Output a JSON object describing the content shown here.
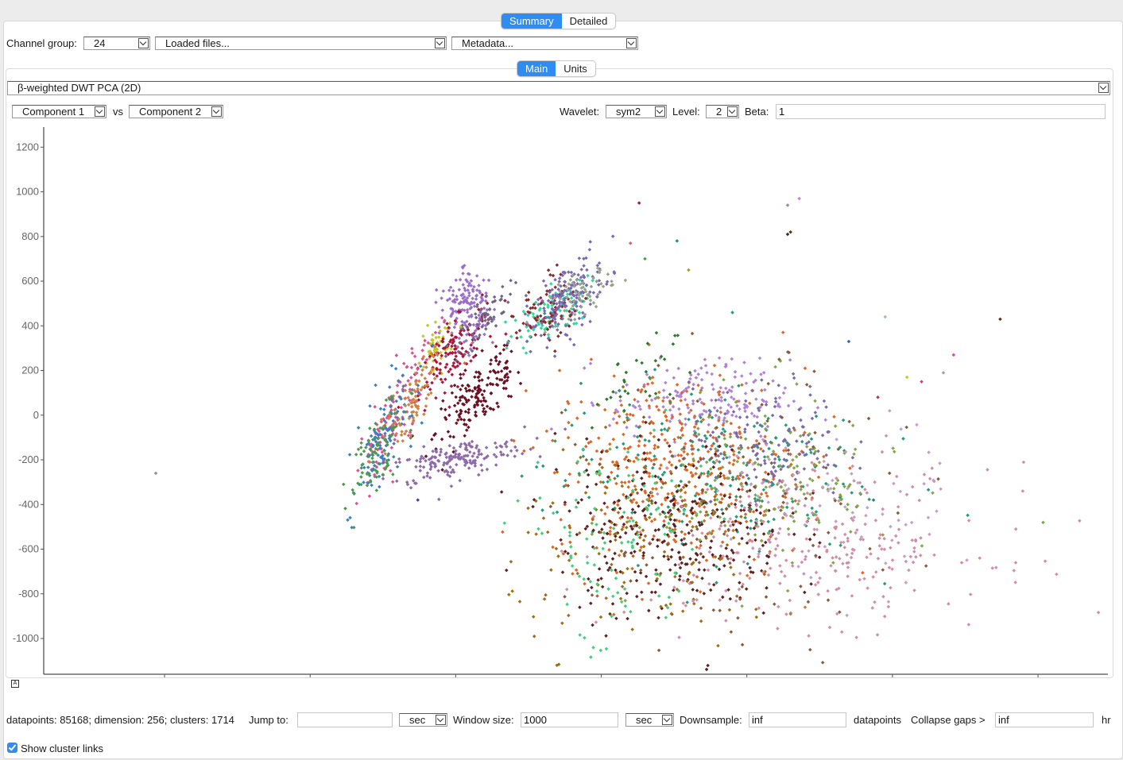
{
  "tabs_top": [
    {
      "label": "Summary",
      "active": true
    },
    {
      "label": "Detailed",
      "active": false
    }
  ],
  "toolbar": {
    "channel_group_label": "Channel group:",
    "channel_group_value": "24",
    "files_value": "Loaded files...",
    "metadata_value": "Metadata..."
  },
  "tabs_inner": [
    {
      "label": "Main",
      "active": true
    },
    {
      "label": "Units",
      "active": false
    }
  ],
  "method_value": "β-weighted DWT PCA (2D)",
  "axes_controls": {
    "x_component": "Component 1",
    "vs_label": "vs",
    "y_component": "Component 2",
    "wavelet_label": "Wavelet:",
    "wavelet_value": "sym2",
    "level_label": "Level:",
    "level_value": "2",
    "beta_label": "Beta:",
    "beta_value": "1"
  },
  "chart_data": {
    "type": "scatter",
    "x_ticks": [
      -2000,
      -1000,
      0,
      1000,
      2000,
      3000,
      4000
    ],
    "y_ticks": [
      1200,
      1000,
      800,
      600,
      400,
      200,
      0,
      -200,
      -400,
      -600,
      -800,
      -1000
    ],
    "xlim": [
      -2830,
      4480
    ],
    "ylim": [
      -1160,
      1290
    ],
    "grid": false,
    "clusters": [
      {
        "name": "",
        "color": "#9b6fc9",
        "cx": 80,
        "cy": 480,
        "sx": 40,
        "sy": 40,
        "angle": 55,
        "n": 160
      },
      {
        "name": "",
        "color": "#c6c820",
        "cx": -140,
        "cy": 300,
        "sx": 30,
        "sy": 20,
        "angle": 55,
        "n": 50
      },
      {
        "name": "",
        "color": "#b0123a",
        "cx": -20,
        "cy": 280,
        "sx": 70,
        "sy": 25,
        "angle": 35,
        "n": 120
      },
      {
        "name": "",
        "color": "#6b1022",
        "cx": 170,
        "cy": 100,
        "sx": 80,
        "sy": 30,
        "angle": 30,
        "n": 170
      },
      {
        "name": "",
        "color": "#8e6aa8",
        "cx": 0,
        "cy": -200,
        "sx": 110,
        "sy": 18,
        "angle": 8,
        "n": 170
      },
      {
        "name": "",
        "color": "#6f6584",
        "cx": 200,
        "cy": 440,
        "sx": 50,
        "sy": 18,
        "angle": 35,
        "n": 60
      },
      {
        "name": "",
        "color": "#2fd99a",
        "cx": 620,
        "cy": 430,
        "sx": 70,
        "sy": 25,
        "angle": 25,
        "n": 90
      },
      {
        "name": "",
        "color": "#8a2a2a",
        "cx": 640,
        "cy": 460,
        "sx": 50,
        "sy": 35,
        "angle": 30,
        "n": 80
      },
      {
        "name": "",
        "color": "#7b68b5",
        "cx": 770,
        "cy": 530,
        "sx": 70,
        "sy": 30,
        "angle": 30,
        "n": 160
      },
      {
        "name": "",
        "color": "#95a58a",
        "cx": 880,
        "cy": 550,
        "sx": 50,
        "sy": 20,
        "angle": 20,
        "n": 60
      },
      {
        "name": "",
        "color": "#e05090",
        "cx": -420,
        "cy": 0,
        "sx": 90,
        "sy": 25,
        "angle": 55,
        "n": 120
      },
      {
        "name": "",
        "color": "#3a7fc0",
        "cx": -480,
        "cy": -100,
        "sx": 80,
        "sy": 30,
        "angle": 55,
        "n": 110
      },
      {
        "name": "",
        "color": "#d08040",
        "cx": -300,
        "cy": 60,
        "sx": 60,
        "sy": 20,
        "angle": 50,
        "n": 80
      },
      {
        "name": "",
        "color": "#4a9a4a",
        "cx": -560,
        "cy": -180,
        "sx": 60,
        "sy": 30,
        "angle": 50,
        "n": 80
      },
      {
        "name": "",
        "color": "#b280d8",
        "cx": 1680,
        "cy": 70,
        "sx": 140,
        "sy": 40,
        "angle": 0,
        "n": 170
      },
      {
        "name": "",
        "color": "#e46422",
        "cx": 1550,
        "cy": -230,
        "sx": 200,
        "sy": 100,
        "angle": 0,
        "n": 420
      },
      {
        "name": "",
        "color": "#1f9c7a",
        "cx": 1700,
        "cy": -250,
        "sx": 250,
        "sy": 90,
        "angle": 0,
        "n": 200
      },
      {
        "name": "",
        "color": "#7a6aa8",
        "cx": 2150,
        "cy": -130,
        "sx": 120,
        "sy": 60,
        "angle": 0,
        "n": 150
      },
      {
        "name": "",
        "color": "#5e2020",
        "cx": 1480,
        "cy": -520,
        "sx": 180,
        "sy": 90,
        "angle": 0,
        "n": 300
      },
      {
        "name": "",
        "color": "#a46c12",
        "cx": 1350,
        "cy": -600,
        "sx": 220,
        "sy": 100,
        "angle": 0,
        "n": 160
      },
      {
        "name": "",
        "color": "#d48ca8",
        "cx": 2450,
        "cy": -580,
        "sx": 280,
        "sy": 80,
        "angle": 0,
        "n": 260
      },
      {
        "name": "",
        "color": "#3ed17a",
        "cx": 1100,
        "cy": -600,
        "sx": 150,
        "sy": 120,
        "angle": 0,
        "n": 100
      },
      {
        "name": "",
        "color": "#7ea84a",
        "cx": 2150,
        "cy": -300,
        "sx": 200,
        "sy": 90,
        "angle": 0,
        "n": 150
      },
      {
        "name": "",
        "color": "#c4a0c4",
        "cx": 2500,
        "cy": -420,
        "sx": 200,
        "sy": 90,
        "angle": 0,
        "n": 80
      },
      {
        "name": "",
        "color": "#2a7a2a",
        "cx": 1300,
        "cy": 200,
        "sx": 100,
        "sy": 30,
        "angle": 20,
        "n": 30
      },
      {
        "name": "",
        "color": "#8a5a3a",
        "cx": 1900,
        "cy": -450,
        "sx": 250,
        "sy": 150,
        "angle": 0,
        "n": 120
      }
    ],
    "outliers": [
      {
        "x": -2060,
        "y": -260,
        "color": "#9a8aa0"
      },
      {
        "x": 3740,
        "y": 430,
        "color": "#6a2a10"
      },
      {
        "x": 1260,
        "y": 950,
        "color": "#b0123a"
      },
      {
        "x": 2280,
        "y": 810,
        "color": "#3a2a2a"
      },
      {
        "x": 2300,
        "y": 820,
        "color": "#5a3a10"
      },
      {
        "x": 2360,
        "y": 970,
        "color": "#c880e0"
      },
      {
        "x": 2280,
        "y": 940,
        "color": "#9a8aa0"
      },
      {
        "x": 3420,
        "y": 270,
        "color": "#e040c0"
      },
      {
        "x": 3100,
        "y": 170,
        "color": "#c8c820"
      },
      {
        "x": 3200,
        "y": 150,
        "color": "#d04080"
      },
      {
        "x": 2900,
        "y": 80,
        "color": "#a04040"
      },
      {
        "x": 2700,
        "y": 330,
        "color": "#3060c0"
      },
      {
        "x": 2400,
        "y": 210,
        "color": "#e06020"
      },
      {
        "x": 2950,
        "y": 440,
        "color": "#a0c0a0"
      },
      {
        "x": 3350,
        "y": 190,
        "color": "#a0a0a0"
      },
      {
        "x": 1200,
        "y": 770,
        "color": "#e06060"
      },
      {
        "x": 1520,
        "y": 780,
        "color": "#209060"
      },
      {
        "x": 1300,
        "y": 700,
        "color": "#40a040"
      },
      {
        "x": 1600,
        "y": 650,
        "color": "#a0a020"
      },
      {
        "x": 2980,
        "y": -260,
        "color": "#8a5a2a"
      },
      {
        "x": 1060,
        "y": -890,
        "color": "#5a3a10"
      },
      {
        "x": 2300,
        "y": -890,
        "color": "#a0862a"
      },
      {
        "x": 2400,
        "y": -860,
        "color": "#c08040"
      },
      {
        "x": -260,
        "y": -380,
        "color": "#6030a0"
      },
      {
        "x": 750,
        "y": -400,
        "color": "#c04040"
      },
      {
        "x": 2870,
        "y": -380,
        "color": "#2a7a7a"
      }
    ]
  },
  "status": {
    "summary": "datapoints: 85168; dimension: 256; clusters: 1714",
    "jump_label": "Jump to:",
    "jump_value": "",
    "jump_unit": "sec",
    "window_label": "Window size:",
    "window_value": "1000",
    "window_unit": "sec",
    "downsample_label": "Downsample:",
    "downsample_value": "inf",
    "downsample_suffix": "datapoints",
    "collapse_label": "Collapse gaps >",
    "collapse_value": "inf",
    "collapse_unit": "hr",
    "links_label": "Show cluster links",
    "links_checked": true
  }
}
